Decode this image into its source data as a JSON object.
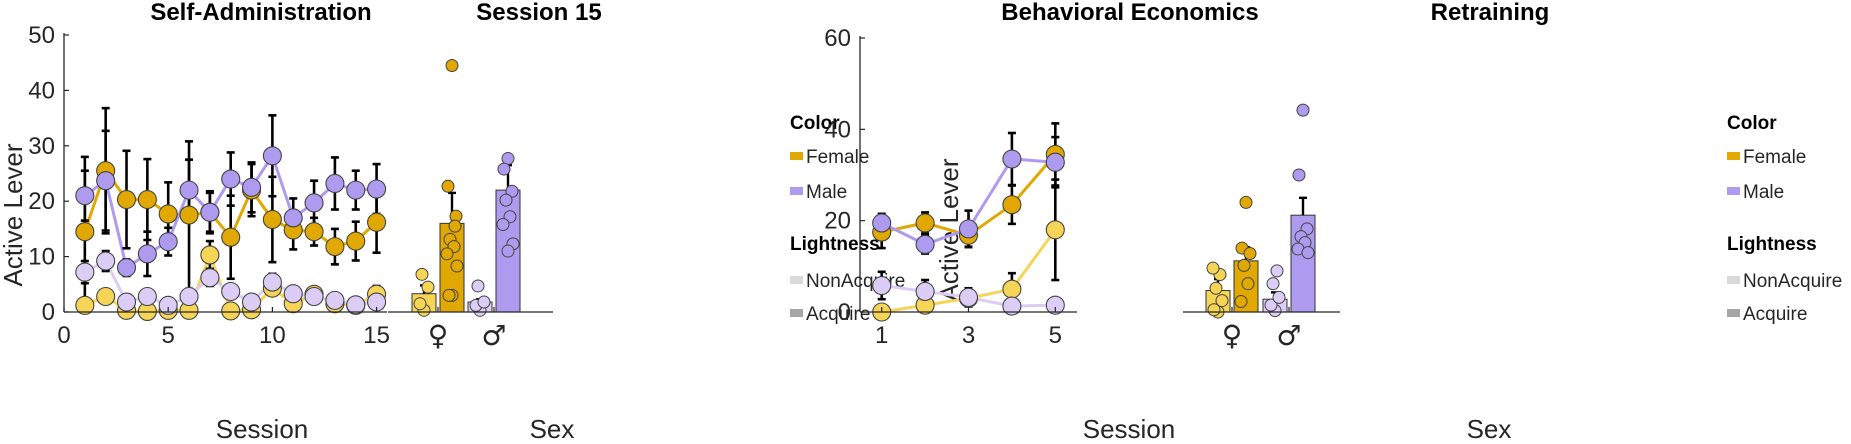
{
  "colors": {
    "female_dark": "#E0A800",
    "female_light": "#F6D455",
    "male_dark": "#AE9BF0",
    "male_light": "#DCCDF7",
    "error_bar": "#000000",
    "axis": "#262626",
    "legend_nonacquire": "#D9D9D9",
    "legend_acquire": "#A6A6A6"
  },
  "chart_data": [
    {
      "id": "self_admin",
      "type": "line",
      "title": "Self-Administration",
      "xlabel": "Session",
      "ylabel": "Active Lever",
      "xlim": [
        0,
        15.5
      ],
      "ylim": [
        0,
        50
      ],
      "xticks": [
        "0",
        "5",
        "10",
        "15"
      ],
      "xtick_values": [
        0,
        5,
        10,
        15
      ],
      "yticks": [
        "0",
        "10",
        "20",
        "30",
        "40",
        "50"
      ],
      "ytick_values": [
        0,
        10,
        20,
        30,
        40,
        50
      ],
      "x": [
        1,
        2,
        3,
        4,
        5,
        6,
        7,
        8,
        9,
        10,
        11,
        12,
        13,
        14,
        15
      ],
      "series": [
        {
          "name": "Female Acquire",
          "color": "female_dark",
          "values": [
            14.5,
            25.5,
            20.3,
            20.3,
            17.7,
            17.5,
            18,
            13.5,
            22,
            16.7,
            14.8,
            14.5,
            11.8,
            12.8,
            16.2
          ],
          "err": [
            13.5,
            11.3,
            8.8,
            7.3,
            5.7,
            13.3,
            3.8,
            7.5,
            4.7,
            7.7,
            3.5,
            2.5,
            3.2,
            3.5,
            5.5
          ]
        },
        {
          "name": "Male Acquire",
          "color": "male_dark",
          "values": [
            21,
            23.7,
            8,
            10.5,
            12.7,
            22,
            18,
            24,
            22.5,
            28.2,
            17,
            19.7,
            23.2,
            22,
            22.2
          ],
          "err": [
            4.5,
            9,
            1.5,
            4,
            2.5,
            5.5,
            3.5,
            4.8,
            4.5,
            7.3,
            3.5,
            4,
            4.7,
            3.5,
            4.5
          ]
        },
        {
          "name": "Female NonAcquire",
          "color": "female_light",
          "values": [
            1.2,
            2.8,
            0.3,
            0.1,
            0.3,
            0.3,
            10.3,
            0.2,
            0.4,
            4.3,
            1.5,
            3.2,
            1.5,
            1.2,
            3.2
          ],
          "err": [
            0.5,
            0.5,
            0.3,
            0.2,
            0.2,
            0.2,
            2.5,
            0.3,
            0.3,
            0.8,
            0.5,
            0.5,
            0.4,
            0.3,
            1.5
          ]
        },
        {
          "name": "Male NonAcquire",
          "color": "male_light",
          "values": [
            7.2,
            9.2,
            1.8,
            2.8,
            1.2,
            2.8,
            6.2,
            3.7,
            1.8,
            5.4,
            3.3,
            2.8,
            2.1,
            1.3,
            1.8
          ],
          "err": [
            2,
            1.8,
            0.5,
            0.5,
            0.4,
            0.6,
            1.5,
            0.8,
            0.5,
            1.5,
            0.8,
            0.6,
            0.5,
            0.4,
            0.5
          ]
        }
      ]
    },
    {
      "id": "session15",
      "type": "bar",
      "title": "Session 15",
      "xlabel": "Sex",
      "ylim": [
        0,
        50
      ],
      "categories": [
        "♀",
        "♂"
      ],
      "bars": [
        {
          "sex": "female",
          "group": "NonAcquire",
          "color": "female_light",
          "value": 3.3,
          "err": 1.5,
          "points": [
            0.3,
            1.5,
            4.5,
            6.8
          ]
        },
        {
          "sex": "female",
          "group": "Acquire",
          "color": "female_dark",
          "value": 16,
          "err": 5.5,
          "points": [
            44.5,
            22.7,
            17.3,
            13.1,
            11.8,
            10.5,
            8.3,
            3,
            3,
            15.5
          ]
        },
        {
          "sex": "male",
          "group": "NonAcquire",
          "color": "male_light",
          "value": 1.8,
          "err": 0.5,
          "points": [
            0.3,
            1.2,
            1.8,
            4.7
          ]
        },
        {
          "sex": "male",
          "group": "Acquire",
          "color": "male_dark",
          "value": 22,
          "err": 4.5,
          "points": [
            27.7,
            25.8,
            21.8,
            20.2,
            17.2,
            15.8,
            12.3,
            11
          ]
        }
      ]
    },
    {
      "id": "behavioral_economics",
      "type": "line",
      "title": "Behavioral Economics",
      "xlabel": "Session",
      "ylabel": "Active Lever",
      "xlim": [
        0.5,
        5.5
      ],
      "ylim": [
        0,
        60
      ],
      "xticks": [
        "1",
        "3",
        "5"
      ],
      "xtick_values": [
        1,
        3,
        5
      ],
      "yticks": [
        "0",
        "20",
        "40",
        "60"
      ],
      "ytick_values": [
        0,
        20,
        40,
        60
      ],
      "x": [
        1,
        2,
        3,
        4,
        5
      ],
      "series": [
        {
          "name": "Female Acquire",
          "color": "female_dark",
          "values": [
            17.5,
            19.5,
            16.8,
            23.5,
            34.5
          ],
          "err": [
            3.5,
            2.3,
            2.5,
            4.2,
            6.8
          ]
        },
        {
          "name": "Male Acquire",
          "color": "male_dark",
          "values": [
            19.5,
            14.8,
            18.2,
            33.5,
            32.8
          ],
          "err": [
            2,
            2,
            4,
            5.7,
            5.5
          ]
        },
        {
          "name": "Female NonAcquire",
          "color": "female_light",
          "values": [
            0,
            1.5,
            3,
            5,
            18
          ],
          "err": [
            0.3,
            0.8,
            1.3,
            3.5,
            11
          ]
        },
        {
          "name": "Male NonAcquire",
          "color": "male_light",
          "values": [
            5.8,
            4.5,
            3.2,
            1.3,
            1.5
          ],
          "err": [
            3,
            2.5,
            2,
            0.8,
            0.5
          ]
        }
      ]
    },
    {
      "id": "retraining",
      "type": "bar",
      "title": "Retraining",
      "xlabel": "Sex",
      "ylim": [
        0,
        60
      ],
      "categories": [
        "♀",
        "♂"
      ],
      "bars": [
        {
          "sex": "female",
          "group": "NonAcquire",
          "color": "female_light",
          "value": 4.7,
          "err": 2.5,
          "points": [
            0,
            0.5,
            2.5,
            5.2,
            8.2,
            9.6
          ]
        },
        {
          "sex": "female",
          "group": "Acquire",
          "color": "female_dark",
          "value": 11.2,
          "err": 3,
          "points": [
            24,
            14,
            12.8,
            10.2,
            6.2,
            2.3
          ]
        },
        {
          "sex": "male",
          "group": "NonAcquire",
          "color": "male_light",
          "value": 2.8,
          "err": 1.5,
          "points": [
            0.3,
            1.5,
            3.2,
            6.2,
            9
          ]
        },
        {
          "sex": "male",
          "group": "Acquire",
          "color": "male_dark",
          "value": 21.2,
          "err": 3.8,
          "points": [
            44.2,
            30,
            18.2,
            16.5,
            15.2,
            13.8,
            13
          ]
        }
      ]
    }
  ],
  "legends": [
    {
      "color_title": "Color",
      "color_items": [
        {
          "label": "Female",
          "color": "female_dark"
        },
        {
          "label": "Male",
          "color": "male_dark"
        }
      ],
      "lightness_title": "Lightness",
      "lightness_items": [
        {
          "label": "NonAcquire",
          "color": "legend_nonacquire"
        },
        {
          "label": "Acquire",
          "color": "legend_acquire"
        }
      ]
    },
    {
      "color_title": "Color",
      "color_items": [
        {
          "label": "Female",
          "color": "female_dark"
        },
        {
          "label": "Male",
          "color": "male_dark"
        }
      ],
      "lightness_title": "Lightness",
      "lightness_items": [
        {
          "label": "NonAcquire",
          "color": "legend_nonacquire"
        },
        {
          "label": "Acquire",
          "color": "legend_acquire"
        }
      ]
    }
  ]
}
